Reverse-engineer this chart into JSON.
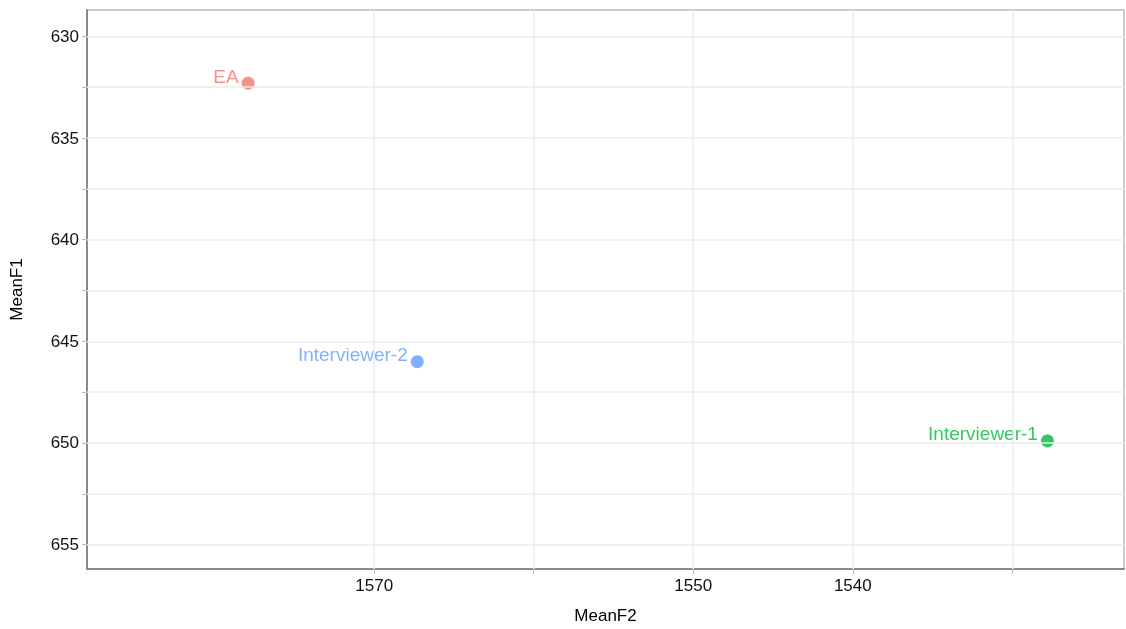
{
  "chart_data": {
    "type": "scatter",
    "xlabel": "MeanF2",
    "ylabel": "MeanF1",
    "xlim": [
      1588,
      1523
    ],
    "ylim": [
      656.2,
      628.7
    ],
    "xticks": [
      1570,
      {
        "value": 1560,
        "label": null
      },
      1550,
      1540,
      {
        "value": 1530,
        "label": null
      }
    ],
    "yticks": [
      630,
      {
        "value": 632.5,
        "label": null
      },
      635,
      {
        "value": 637.5,
        "label": null
      },
      640,
      {
        "value": 642.5,
        "label": null
      },
      645,
      {
        "value": 647.5,
        "label": null
      },
      650,
      {
        "value": 652.5,
        "label": null
      },
      655
    ],
    "grid": true,
    "legend": false,
    "marker": "circle",
    "series": [
      {
        "name": "EA",
        "color": "#f8766d",
        "x": [
          1577.9
        ],
        "values": [
          632.3
        ]
      },
      {
        "name": "Interviewer-2",
        "color": "#619cff",
        "x": [
          1567.3
        ],
        "values": [
          646.0
        ]
      },
      {
        "name": "Interviewer-1",
        "color": "#00ba38",
        "x": [
          1527.8
        ],
        "values": [
          649.9
        ]
      }
    ]
  }
}
